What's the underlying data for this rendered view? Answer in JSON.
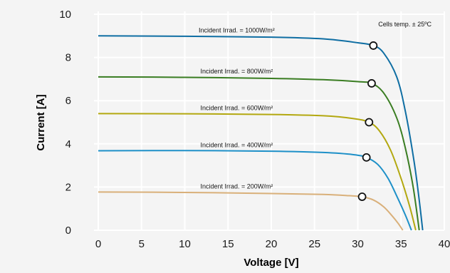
{
  "chart_data": {
    "type": "line",
    "title": "",
    "xlabel": "Voltage [V]",
    "ylabel": "Current [A]",
    "xlim": [
      0,
      40
    ],
    "ylim": [
      0,
      10
    ],
    "xticks": [
      "0",
      "5",
      "10",
      "15",
      "20",
      "25",
      "30",
      "35",
      "40"
    ],
    "yticks": [
      "0",
      "2",
      "4",
      "6",
      "8",
      "10"
    ],
    "grid": true,
    "legend": "none",
    "annotation": "Cells temp. ± 25ºC",
    "series": [
      {
        "name": "Incident Irrad. = 1000W/m²",
        "color": "#0f6ea3",
        "isc": 9.0,
        "voc": 37.5,
        "mpp": {
          "x": 31.8,
          "y": 8.55
        },
        "points": [
          [
            0,
            9.0
          ],
          [
            10,
            8.98
          ],
          [
            20,
            8.94
          ],
          [
            26,
            8.86
          ],
          [
            30,
            8.68
          ],
          [
            31.8,
            8.55
          ],
          [
            33,
            8.2
          ],
          [
            34.5,
            7.1
          ],
          [
            35.5,
            5.5
          ],
          [
            36.5,
            3.2
          ],
          [
            37.1,
            1.4
          ],
          [
            37.5,
            0
          ]
        ]
      },
      {
        "name": "Incident Irrad. = 800W/m²",
        "color": "#3a7d22",
        "isc": 7.1,
        "voc": 37.1,
        "mpp": {
          "x": 31.6,
          "y": 6.8
        },
        "points": [
          [
            0,
            7.1
          ],
          [
            10,
            7.08
          ],
          [
            20,
            7.03
          ],
          [
            26,
            6.97
          ],
          [
            30,
            6.88
          ],
          [
            31.6,
            6.8
          ],
          [
            33,
            6.35
          ],
          [
            34.5,
            5.2
          ],
          [
            35.5,
            3.8
          ],
          [
            36.4,
            2.0
          ],
          [
            37.1,
            0
          ]
        ]
      },
      {
        "name": "Incident Irrad. = 600W/m²",
        "color": "#b3a810",
        "isc": 5.4,
        "voc": 36.7,
        "mpp": {
          "x": 31.3,
          "y": 5.0
        },
        "points": [
          [
            0,
            5.4
          ],
          [
            10,
            5.39
          ],
          [
            20,
            5.36
          ],
          [
            26,
            5.3
          ],
          [
            29.5,
            5.17
          ],
          [
            31.3,
            5.0
          ],
          [
            32.5,
            4.6
          ],
          [
            33.8,
            3.7
          ],
          [
            35,
            2.4
          ],
          [
            36,
            1.1
          ],
          [
            36.7,
            0
          ]
        ]
      },
      {
        "name": "Incident Irrad. = 400W/m²",
        "color": "#1e90c8",
        "isc": 3.68,
        "voc": 36.2,
        "mpp": {
          "x": 31.0,
          "y": 3.37
        },
        "points": [
          [
            0,
            3.68
          ],
          [
            10,
            3.69
          ],
          [
            20,
            3.66
          ],
          [
            26,
            3.6
          ],
          [
            29.5,
            3.5
          ],
          [
            31.0,
            3.37
          ],
          [
            32.3,
            3.05
          ],
          [
            33.5,
            2.4
          ],
          [
            34.6,
            1.5
          ],
          [
            35.5,
            0.7
          ],
          [
            36.2,
            0
          ]
        ]
      },
      {
        "name": "Incident Irrad. = 200W/m²",
        "color": "#d9b07a",
        "isc": 1.77,
        "voc": 35.2,
        "mpp": {
          "x": 30.5,
          "y": 1.55
        },
        "points": [
          [
            0,
            1.77
          ],
          [
            10,
            1.75
          ],
          [
            20,
            1.7
          ],
          [
            26,
            1.66
          ],
          [
            29,
            1.6
          ],
          [
            30.5,
            1.55
          ],
          [
            31.8,
            1.4
          ],
          [
            33,
            1.08
          ],
          [
            34,
            0.65
          ],
          [
            34.7,
            0.3
          ],
          [
            35.2,
            0
          ]
        ]
      }
    ]
  }
}
